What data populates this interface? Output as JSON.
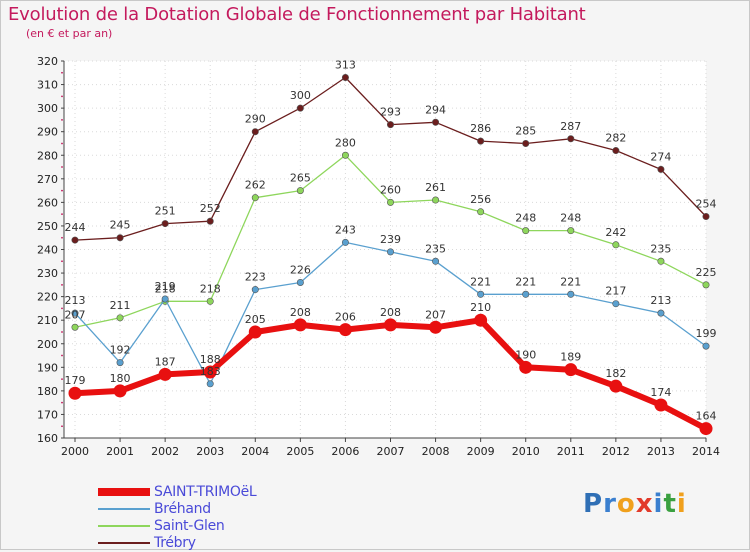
{
  "title": "Evolution de la Dotation Globale de Fonctionnement par Habitant",
  "subtitle": "(en € et par an)",
  "logo": {
    "p": "P",
    "r": "r",
    "o": "o",
    "x": "x",
    "i1": "i",
    "t": "t",
    "i2": "i"
  },
  "colors": {
    "title": "#c41a5d",
    "SAINT-TRIMOëL": "#e81010",
    "Bréhand": "#5aa0cf",
    "Saint-Glen": "#8ed65c",
    "Trébry": "#6b1e1e"
  },
  "chart_data": {
    "type": "line",
    "title": "Evolution de la Dotation Globale de Fonctionnement par Habitant",
    "subtitle": "(en € et par an)",
    "xlabel": "",
    "ylabel": "",
    "ylim": [
      160,
      320
    ],
    "yticks": [
      160,
      170,
      180,
      190,
      200,
      210,
      220,
      230,
      240,
      250,
      260,
      270,
      280,
      290,
      300,
      310,
      320
    ],
    "categories": [
      "2000",
      "2001",
      "2002",
      "2003",
      "2004",
      "2005",
      "2006",
      "2007",
      "2008",
      "2009",
      "2010",
      "2011",
      "2012",
      "2013",
      "2014"
    ],
    "legend_position": "bottom-left",
    "series": [
      {
        "name": "Trébry",
        "values": [
          244,
          245,
          251,
          252,
          290,
          300,
          313,
          293,
          294,
          286,
          285,
          287,
          282,
          274,
          254
        ]
      },
      {
        "name": "Saint-Glen",
        "values": [
          207,
          211,
          218,
          218,
          262,
          265,
          280,
          260,
          261,
          256,
          248,
          248,
          242,
          235,
          225
        ]
      },
      {
        "name": "Bréhand",
        "values": [
          213,
          192,
          219,
          183,
          223,
          226,
          243,
          239,
          235,
          221,
          221,
          221,
          217,
          213,
          199
        ]
      },
      {
        "name": "SAINT-TRIMOëL",
        "values": [
          179,
          180,
          187,
          188,
          205,
          208,
          206,
          208,
          207,
          210,
          190,
          189,
          182,
          174,
          164
        ]
      }
    ],
    "label_text": {
      "Trébry": [
        "244",
        "245",
        "251",
        "252",
        "290",
        "300",
        "313",
        "293",
        "294",
        "286",
        "285",
        "287",
        "282",
        "274",
        "254"
      ],
      "Saint-Glen": [
        "207",
        "211",
        "218",
        "218",
        "262",
        "265",
        "280",
        "260",
        "261",
        "256",
        "248",
        "248",
        "242",
        "235",
        "225"
      ],
      "Bréhand": [
        "213",
        "192",
        "219",
        "183",
        "223",
        "226",
        "243",
        "239",
        "235",
        "221",
        "221",
        "221",
        "217",
        "213",
        "199"
      ],
      "SAINT-TRIMOëL": [
        "179",
        "180",
        "187",
        "188",
        "205",
        "208",
        "206",
        "208",
        "207",
        "210",
        "190",
        "189",
        "182",
        "174",
        "164"
      ]
    },
    "legend_order": [
      "SAINT-TRIMOëL",
      "Bréhand",
      "Saint-Glen",
      "Trébry"
    ]
  }
}
